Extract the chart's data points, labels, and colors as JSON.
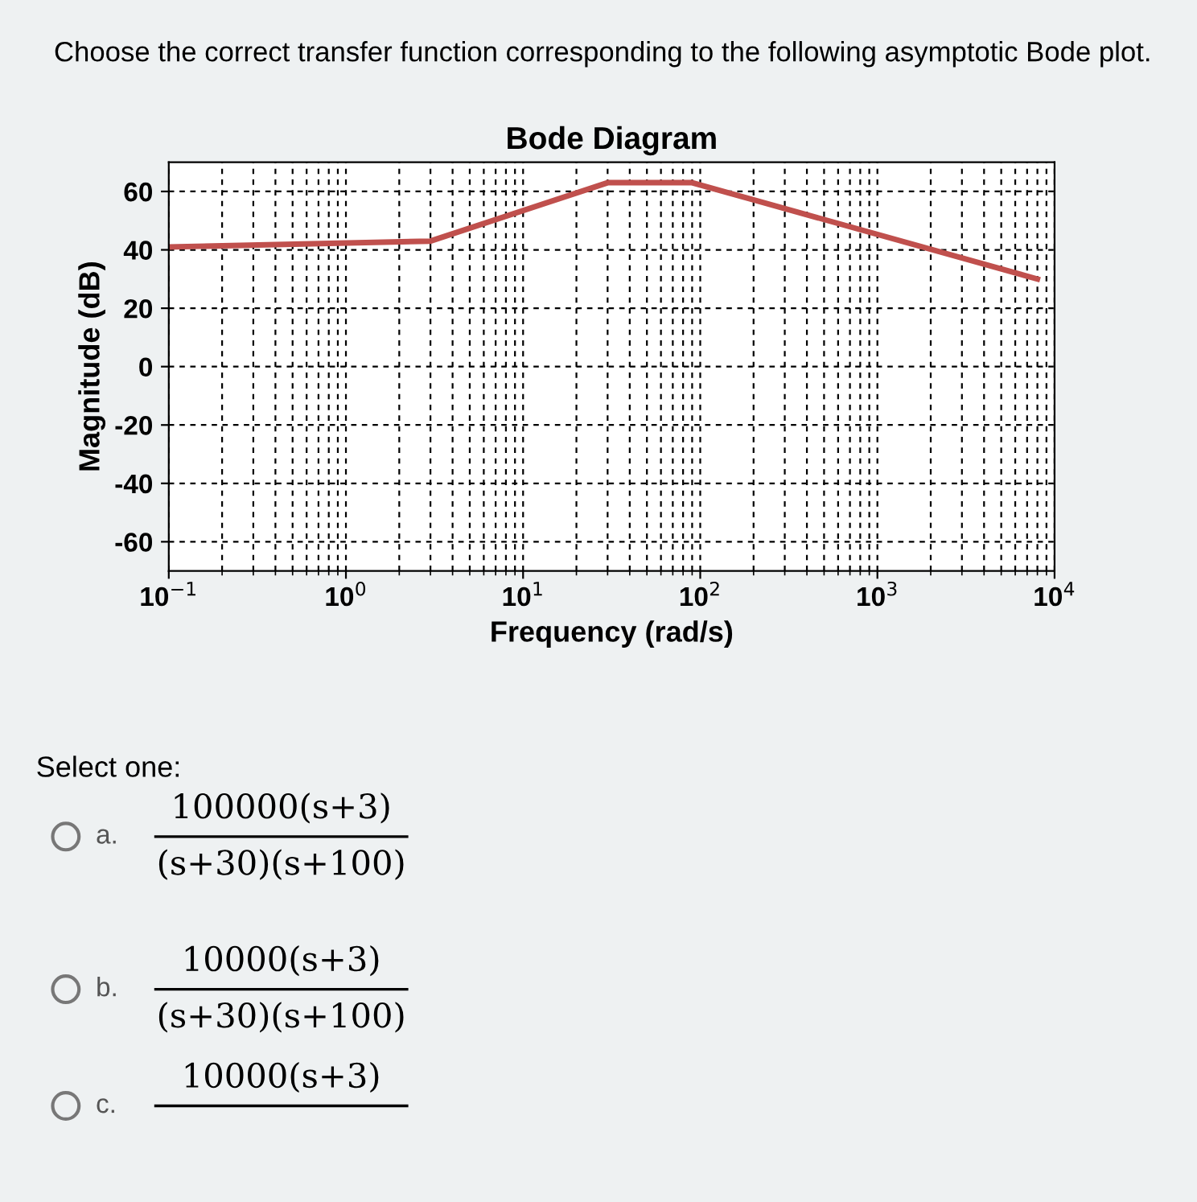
{
  "chart_data": {
    "type": "line",
    "title": "Bode Diagram",
    "xlabel": "Frequency (rad/s)",
    "ylabel": "Magnitude (dB)",
    "x": [
      0.1,
      3,
      30,
      90,
      8000
    ],
    "series": [
      {
        "color": "#c0504d",
        "values": [
          41,
          43,
          63,
          63,
          30
        ]
      }
    ],
    "log": "x",
    "xlim": [
      0.1,
      10000
    ],
    "ylim": [
      -70,
      70
    ],
    "xticks": [
      {
        "value": 0.1,
        "label": "10$^{−1}$"
      },
      {
        "value": 1,
        "label": "10$^{0}$"
      },
      {
        "value": 10,
        "label": "10$^{1}$"
      },
      {
        "value": 100,
        "label": "10$^{2}$"
      },
      {
        "value": 1000,
        "label": "10$^{3}$"
      },
      {
        "value": 10000,
        "label": "10$^{4}$"
      }
    ],
    "yticks": [
      -60,
      -40,
      -20,
      0,
      20,
      40,
      60
    ],
    "grid": true,
    "marker": "none",
    "line_style": "solid",
    "annotations": [
      "Choose the correct transfer function corresponding to the following asymptotic Bode plot.",
      "Select one:",
      "a.",
      "100000(s+3)",
      "(s+30)(s+100)",
      "b.",
      "10000(s+3)",
      "(s+30)(s+100)",
      "c.",
      "10000(s+3)"
    ]
  }
}
